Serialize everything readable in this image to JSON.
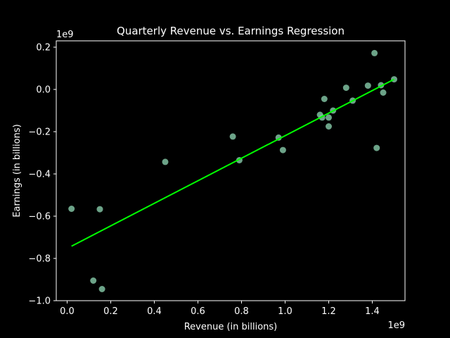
{
  "chart_data": {
    "type": "scatter",
    "title": "Quarterly Revenue vs. Earnings Regression",
    "xlabel": "Revenue (in billions)",
    "ylabel": "Earnings (in billions)",
    "x_offset_text": "1e9",
    "y_offset_text": "1e9",
    "xlim": [
      -0.05,
      1.55
    ],
    "ylim": [
      -1.0,
      0.23
    ],
    "xticks": [
      0.0,
      0.2,
      0.4,
      0.6,
      0.8,
      1.0,
      1.2,
      1.4
    ],
    "xtick_labels": [
      "0.0",
      "0.2",
      "0.4",
      "0.6",
      "0.8",
      "1.0",
      "1.2",
      "1.4"
    ],
    "yticks": [
      -1.0,
      -0.8,
      -0.6,
      -0.4,
      -0.2,
      0.0,
      0.2
    ],
    "ytick_labels": [
      "−1.0",
      "−0.8",
      "−0.6",
      "−0.4",
      "−0.2",
      "0.0",
      "0.2"
    ],
    "grid": false,
    "background_color": "#000000",
    "text_color": "#ffffff",
    "point_color": "#7fbfa0",
    "line_color": "#00ff00",
    "series": [
      {
        "kind": "scatter",
        "x": [
          0.02,
          0.12,
          0.15,
          0.16,
          0.45,
          0.76,
          0.79,
          0.97,
          0.99,
          1.16,
          1.17,
          1.18,
          1.2,
          1.2,
          1.22,
          1.28,
          1.31,
          1.38,
          1.41,
          1.42,
          1.44,
          1.45,
          1.5
        ],
        "y": [
          -0.565,
          -0.905,
          -0.567,
          -0.945,
          -0.343,
          -0.223,
          -0.335,
          -0.228,
          -0.287,
          -0.12,
          -0.133,
          -0.045,
          -0.133,
          -0.175,
          -0.1,
          0.008,
          -0.053,
          0.018,
          0.172,
          -0.277,
          0.02,
          -0.015,
          0.048
        ]
      },
      {
        "kind": "regression-line",
        "x": [
          0.02,
          1.5
        ],
        "y": [
          -0.742,
          0.048
        ]
      }
    ]
  }
}
